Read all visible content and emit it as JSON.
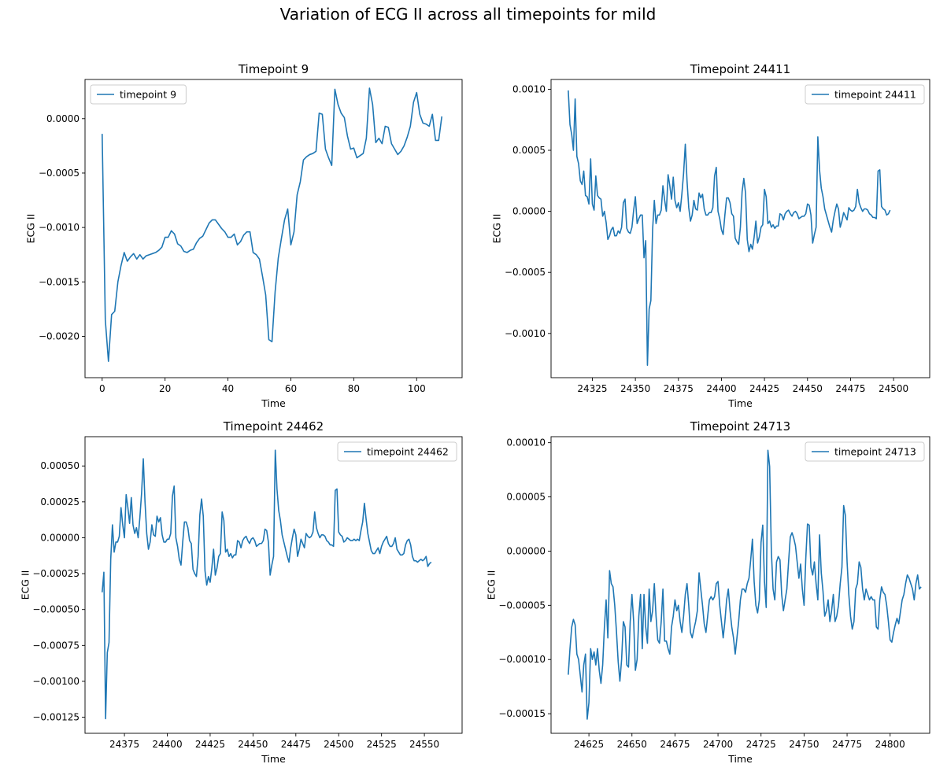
{
  "suptitle": "Variation of ECG II across all timepoints for mild",
  "colors": {
    "line": "#1f77b4",
    "axis": "#000000",
    "legend_border": "#cccccc"
  },
  "chart_data": [
    {
      "type": "line",
      "title": "Timepoint 9",
      "xlabel": "Time",
      "ylabel": "ECG II",
      "legend_position": "upper left",
      "xlim": [
        -5.45,
        114.45
      ],
      "ylim": [
        -0.00238,
        0.00036
      ],
      "xticks": [
        0,
        20,
        40,
        60,
        80,
        100
      ],
      "yticks": [
        -0.002,
        -0.0015,
        -0.001,
        -0.0005,
        0.0
      ],
      "ytick_labels": [
        "−0.0020",
        "−0.0015",
        "−0.0010",
        "−0.0005",
        "0.0000"
      ],
      "series": [
        {
          "name": "timepoint 9",
          "x_start": 0,
          "x_step": 1,
          "values": [
            -0.00014,
            -0.00185,
            -0.00223,
            -0.0018,
            -0.00177,
            -0.0015,
            -0.00135,
            -0.00123,
            -0.00131,
            -0.00127,
            -0.00124,
            -0.00129,
            -0.00125,
            -0.00129,
            -0.00126,
            -0.00125,
            -0.00124,
            -0.00123,
            -0.00121,
            -0.00118,
            -0.00109,
            -0.00109,
            -0.00103,
            -0.00106,
            -0.00115,
            -0.00117,
            -0.00122,
            -0.00123,
            -0.00121,
            -0.0012,
            -0.00114,
            -0.0011,
            -0.00108,
            -0.00102,
            -0.00096,
            -0.00093,
            -0.00093,
            -0.00097,
            -0.00101,
            -0.00104,
            -0.00109,
            -0.00109,
            -0.00106,
            -0.00116,
            -0.00113,
            -0.00107,
            -0.00104,
            -0.00104,
            -0.00123,
            -0.00125,
            -0.00129,
            -0.00145,
            -0.00162,
            -0.00203,
            -0.00205,
            -0.00159,
            -0.00128,
            -0.0011,
            -0.00093,
            -0.00083,
            -0.00116,
            -0.00104,
            -0.0007,
            -0.00058,
            -0.00038,
            -0.00035,
            -0.00033,
            -0.00032,
            -0.0003,
            5e-05,
            4e-05,
            -0.00028,
            -0.00036,
            -0.00043,
            0.00027,
            0.00013,
            5e-05,
            1e-05,
            -0.00016,
            -0.00028,
            -0.00027,
            -0.00036,
            -0.00034,
            -0.00032,
            -0.00018,
            0.00028,
            0.00013,
            -0.00022,
            -0.00018,
            -0.00023,
            -7e-05,
            -8e-05,
            -0.00023,
            -0.00028,
            -0.00033,
            -0.0003,
            -0.00025,
            -0.00017,
            -7e-05,
            0.00015,
            0.00024,
            4e-05,
            -4e-05,
            -5e-05,
            -7e-05,
            4e-05,
            -0.0002,
            -0.0002,
            2e-05
          ]
        }
      ]
    },
    {
      "type": "line",
      "title": "Timepoint 24411",
      "xlabel": "Time",
      "ylabel": "ECG II",
      "legend_position": "upper right",
      "xlim": [
        24301,
        24521
      ],
      "ylim": [
        -0.001362,
        0.00108
      ],
      "xticks": [
        24325,
        24350,
        24375,
        24400,
        24425,
        24450,
        24475,
        24500
      ],
      "yticks": [
        -0.001,
        -0.0005,
        0.0,
        0.0005,
        0.001
      ],
      "ytick_labels": [
        "−0.0010",
        "−0.0005",
        "0.0000",
        "0.0005",
        "0.0010"
      ],
      "series": [
        {
          "name": "timepoint 24411",
          "x_start": 24311,
          "x_step": 1,
          "values": [
            0.00099,
            0.00071,
            0.00063,
            0.0005,
            0.00092,
            0.00045,
            0.00039,
            0.00025,
            0.00022,
            0.00033,
            0.00013,
            0.00012,
            6e-05,
            0.00043,
            6e-05,
            1e-05,
            0.00029,
            0.00013,
            0.00011,
            0.0001,
            -4e-05,
            0.0,
            -9e-05,
            -0.00023,
            -0.0002,
            -0.00015,
            -0.00013,
            -0.0002,
            -0.0002,
            -0.00016,
            -0.00018,
            -0.00013,
            7e-05,
            0.0001,
            -0.00014,
            -0.00017,
            -0.00018,
            -0.00013,
            1e-05,
            0.00012,
            -0.0001,
            -6e-05,
            -3e-05,
            -3e-05,
            -0.00038,
            -0.00024,
            -0.00126,
            -0.0008,
            -0.00073,
            -0.00015,
            9e-05,
            -0.0001,
            -3e-05,
            -3e-05,
            1e-05,
            0.00021,
            9e-05,
            0.0,
            0.0003,
            0.00021,
            0.0001,
            0.00028,
            9e-05,
            3e-05,
            7e-05,
            0.0,
            0.00014,
            0.00031,
            0.00055,
            0.00025,
            3e-05,
            -8e-05,
            -3e-05,
            9e-05,
            2e-05,
            1e-05,
            0.00015,
            0.00011,
            0.00014,
            2e-05,
            -3e-05,
            -3e-05,
            -1e-05,
            -1e-05,
            3e-05,
            0.00029,
            0.00036,
            0.0,
            -6e-05,
            -0.00015,
            -0.00019,
            -3e-05,
            0.00011,
            0.00011,
            7e-05,
            -2e-05,
            -4e-05,
            -0.00022,
            -0.00025,
            -0.00027,
            -0.00013,
            0.00016,
            0.00027,
            0.00015,
            -0.00023,
            -0.00033,
            -0.00027,
            -0.00031,
            -0.00021,
            -8e-05,
            -0.00026,
            -0.00021,
            -0.00013,
            -0.00011,
            0.00018,
            0.00012,
            -0.0001,
            -8e-05,
            -0.00013,
            -0.00011,
            -0.00014,
            -0.00012,
            -0.00012,
            -2e-05,
            -3e-05,
            -7e-05,
            -2e-05,
            0.0,
            1e-05,
            -2e-05,
            -4e-05,
            -1e-05,
            0.0,
            -2e-05,
            -6e-05,
            -5e-05,
            -4e-05,
            -4e-05,
            -2e-05,
            6e-05,
            5e-05,
            -3e-05,
            -0.00026,
            -0.00019,
            -0.00013,
            0.00061,
            0.00034,
            0.00019,
            0.00012,
            2e-05,
            -3e-05,
            -8e-05,
            -0.00013,
            -0.00017,
            -7e-05,
            0.0,
            6e-05,
            2e-05,
            -0.00013,
            -8e-05,
            -1e-05,
            -4e-05,
            -7e-05,
            3e-05,
            1e-05,
            0.0,
            1e-05,
            4e-05,
            0.00018,
            7e-05,
            3e-05,
            0.0,
            2e-05,
            2e-05,
            1e-05,
            -2e-05,
            -3e-05,
            -5e-05,
            -5e-05,
            -6e-05,
            0.00033,
            0.00034,
            4e-05,
            2e-05,
            1e-05,
            -3e-05,
            -2e-05,
            1e-05
          ]
        }
      ]
    },
    {
      "type": "line",
      "title": "Timepoint 24462",
      "xlabel": "Time",
      "ylabel": "ECG II",
      "legend_position": "upper right",
      "xlim": [
        24352,
        24572
      ],
      "ylim": [
        -0.001362,
        0.000704
      ],
      "xticks": [
        24375,
        24400,
        24425,
        24450,
        24475,
        24500,
        24525,
        24550
      ],
      "yticks": [
        -0.00125,
        -0.001,
        -0.00075,
        -0.0005,
        -0.00025,
        0.0,
        0.00025,
        0.0005
      ],
      "ytick_labels": [
        "−0.00125",
        "−0.00100",
        "−0.00075",
        "−0.00050",
        "−0.00025",
        "0.00000",
        "0.00025",
        "0.00050"
      ],
      "series": [
        {
          "name": "timepoint 24462",
          "x_start": 24362,
          "x_step": 1,
          "values": [
            -0.00038,
            -0.00024,
            -0.00126,
            -0.0008,
            -0.00073,
            -0.00015,
            9e-05,
            -0.0001,
            -3e-05,
            -3e-05,
            1e-05,
            0.00021,
            9e-05,
            0.0,
            0.0003,
            0.00021,
            0.0001,
            0.00028,
            9e-05,
            3e-05,
            7e-05,
            0.0,
            0.00014,
            0.00031,
            0.00055,
            0.00025,
            3e-05,
            -8e-05,
            -3e-05,
            9e-05,
            2e-05,
            1e-05,
            0.00015,
            0.00011,
            0.00014,
            2e-05,
            -3e-05,
            -3e-05,
            -1e-05,
            -1e-05,
            3e-05,
            0.00029,
            0.00036,
            0.0,
            -6e-05,
            -0.00015,
            -0.00019,
            -3e-05,
            0.00011,
            0.00011,
            7e-05,
            -2e-05,
            -4e-05,
            -0.00022,
            -0.00025,
            -0.00027,
            -0.00013,
            0.00016,
            0.00027,
            0.00015,
            -0.00023,
            -0.00033,
            -0.00027,
            -0.00031,
            -0.00021,
            -8e-05,
            -0.00026,
            -0.00021,
            -0.00013,
            -0.00011,
            0.00018,
            0.00012,
            -0.0001,
            -8e-05,
            -0.00013,
            -0.00011,
            -0.00014,
            -0.00012,
            -0.00012,
            -2e-05,
            -3e-05,
            -7e-05,
            -2e-05,
            0.0,
            1e-05,
            -2e-05,
            -4e-05,
            -1e-05,
            0.0,
            -2e-05,
            -6e-05,
            -5e-05,
            -4e-05,
            -4e-05,
            -2e-05,
            6e-05,
            5e-05,
            -3e-05,
            -0.00026,
            -0.00019,
            -0.00013,
            0.00061,
            0.00034,
            0.00019,
            0.00012,
            2e-05,
            -3e-05,
            -8e-05,
            -0.00013,
            -0.00017,
            -7e-05,
            0.0,
            6e-05,
            2e-05,
            -0.00013,
            -8e-05,
            -1e-05,
            -4e-05,
            -7e-05,
            3e-05,
            1e-05,
            0.0,
            1e-05,
            4e-05,
            0.00018,
            7e-05,
            3e-05,
            0.0,
            2e-05,
            2e-05,
            1e-05,
            -2e-05,
            -3e-05,
            -5e-05,
            -5e-05,
            -6e-05,
            0.00033,
            0.00034,
            4e-05,
            2e-05,
            1e-05,
            -3e-05,
            -2e-05,
            0.0,
            -1e-05,
            -2e-05,
            -2e-05,
            -1e-05,
            -2e-05,
            -1e-05,
            -2e-05,
            5e-05,
            0.00011,
            0.00024,
            0.00013,
            3e-05,
            -3e-05,
            -9e-05,
            -0.00011,
            -0.00011,
            -9e-05,
            -7e-05,
            -0.00011,
            -6e-05,
            -3e-05,
            -1e-05,
            1e-05,
            -4e-05,
            -6e-05,
            -6e-05,
            -4e-05,
            0.0,
            -8e-05,
            -0.0001,
            -0.00012,
            -0.00012,
            -0.00011,
            -5e-05,
            -2e-05,
            -1e-05,
            -5e-05,
            -0.00013,
            -0.00016,
            -0.00016,
            -0.00017,
            -0.00016,
            -0.00015,
            -0.00016,
            -0.00015,
            -0.00013,
            -0.0002,
            -0.00018,
            -0.00017
          ]
        }
      ]
    },
    {
      "type": "line",
      "title": "Timepoint 24713",
      "xlabel": "Time",
      "ylabel": "ECG II",
      "legend_position": "upper right",
      "xlim": [
        24603,
        24823
      ],
      "ylim": [
        -0.00016806,
        0.00010556
      ],
      "xticks": [
        24625,
        24650,
        24675,
        24700,
        24725,
        24750,
        24775,
        24800
      ],
      "yticks": [
        -0.00015,
        -0.0001,
        -5e-05,
        0.0,
        5e-05,
        0.0001
      ],
      "ytick_labels": [
        "−0.00015",
        "−0.00010",
        "−0.00005",
        "0.00000",
        "0.00005",
        "0.00010"
      ],
      "series": [
        {
          "name": "timepoint 24713",
          "x_start": 24613,
          "x_step": 1,
          "values": [
            -0.000114,
            -9e-05,
            -7e-05,
            -6.3e-05,
            -6.8e-05,
            -9.5e-05,
            -0.0001,
            -0.000115,
            -0.00013,
            -0.000105,
            -9.5e-05,
            -0.000155,
            -0.00014,
            -9e-05,
            -0.0001,
            -9.3e-05,
            -0.000105,
            -9e-05,
            -0.00011,
            -0.000122,
            -0.000105,
            -7e-05,
            -4.5e-05,
            -8e-05,
            -1.8e-05,
            -3e-05,
            -3.3e-05,
            -5e-05,
            -7.4e-05,
            -0.000102,
            -0.00012,
            -0.0001,
            -6.5e-05,
            -7e-05,
            -0.000105,
            -0.000107,
            -6.5e-05,
            -4e-05,
            -6.5e-05,
            -0.00011,
            -0.0001,
            -6e-05,
            -4e-05,
            -9e-05,
            -4e-05,
            -7e-05,
            -8.5e-05,
            -3.5e-05,
            -6.5e-05,
            -5.5e-05,
            -3e-05,
            -6e-05,
            -8.2e-05,
            -8.5e-05,
            -6.5e-05,
            -3.5e-05,
            -8.3e-05,
            -8.3e-05,
            -9e-05,
            -9.5e-05,
            -7e-05,
            -6e-05,
            -4.5e-05,
            -5.5e-05,
            -5e-05,
            -6.5e-05,
            -7.5e-05,
            -6e-05,
            -4e-05,
            -3e-05,
            -5e-05,
            -7.5e-05,
            -8e-05,
            -7.2e-05,
            -6.5e-05,
            -5.5e-05,
            -2e-05,
            -3.5e-05,
            -5e-05,
            -6.7e-05,
            -7.5e-05,
            -6e-05,
            -4.5e-05,
            -4.2e-05,
            -4.5e-05,
            -4.2e-05,
            -3e-05,
            -2.8e-05,
            -5e-05,
            -6.5e-05,
            -8e-05,
            -6.5e-05,
            -4.5e-05,
            -3.5e-05,
            -5.5e-05,
            -7e-05,
            -8e-05,
            -9.5e-05,
            -8e-05,
            -6.5e-05,
            -4.5e-05,
            -3.5e-05,
            -3.5e-05,
            -3.8e-05,
            -3e-05,
            -2.5e-05,
            -8e-06,
            1.1e-05,
            -2.8e-05,
            -5e-05,
            -5.7e-05,
            -4.5e-05,
            8e-06,
            2.4e-05,
            -2.8e-05,
            -5.2e-05,
            9.3e-05,
            7.8e-05,
            0.0,
            -3.5e-05,
            -4.5e-05,
            -1e-05,
            -5e-06,
            -8e-06,
            -4e-05,
            -5.5e-05,
            -4.5e-05,
            -3.5e-05,
            -1e-05,
            1.3e-05,
            1.7e-05,
            1.2e-05,
            5e-06,
            -1e-05,
            -2.5e-05,
            -1.2e-05,
            -3.5e-05,
            -5e-05,
            -7e-06,
            2.5e-05,
            2.4e-05,
            -1.5e-05,
            -2.2e-05,
            -1e-05,
            -3e-05,
            -4.5e-05,
            1.5e-05,
            -2e-05,
            -3.7e-05,
            -6e-05,
            -5.5e-05,
            -4.5e-05,
            -6.5e-05,
            -5.5e-05,
            -4e-05,
            -6.5e-05,
            -6e-05,
            -5e-05,
            -3e-05,
            -1.5e-05,
            4.2e-05,
            3.3e-05,
            -1e-05,
            -4e-05,
            -6e-05,
            -7.2e-05,
            -6.5e-05,
            -3.5e-05,
            -3e-05,
            -1e-05,
            -1.5e-05,
            -3.5e-05,
            -4.5e-05,
            -3.5e-05,
            -4e-05,
            -4.5e-05,
            -4.2e-05,
            -4.5e-05,
            -4.5e-05,
            -7e-05,
            -7.2e-05,
            -4.5e-05,
            -3.3e-05,
            -3.8e-05,
            -4e-05,
            -5e-05,
            -6.5e-05,
            -8.2e-05,
            -8.4e-05,
            -7.5e-05,
            -6.8e-05,
            -6.2e-05,
            -6.7e-05,
            -5.6e-05,
            -4.5e-05,
            -4e-05,
            -3e-05,
            -2.2e-05,
            -2.5e-05,
            -3e-05,
            -3.5e-05,
            -4.5e-05,
            -3e-05,
            -2.2e-05,
            -3.5e-05,
            -3.3e-05
          ]
        }
      ]
    }
  ]
}
